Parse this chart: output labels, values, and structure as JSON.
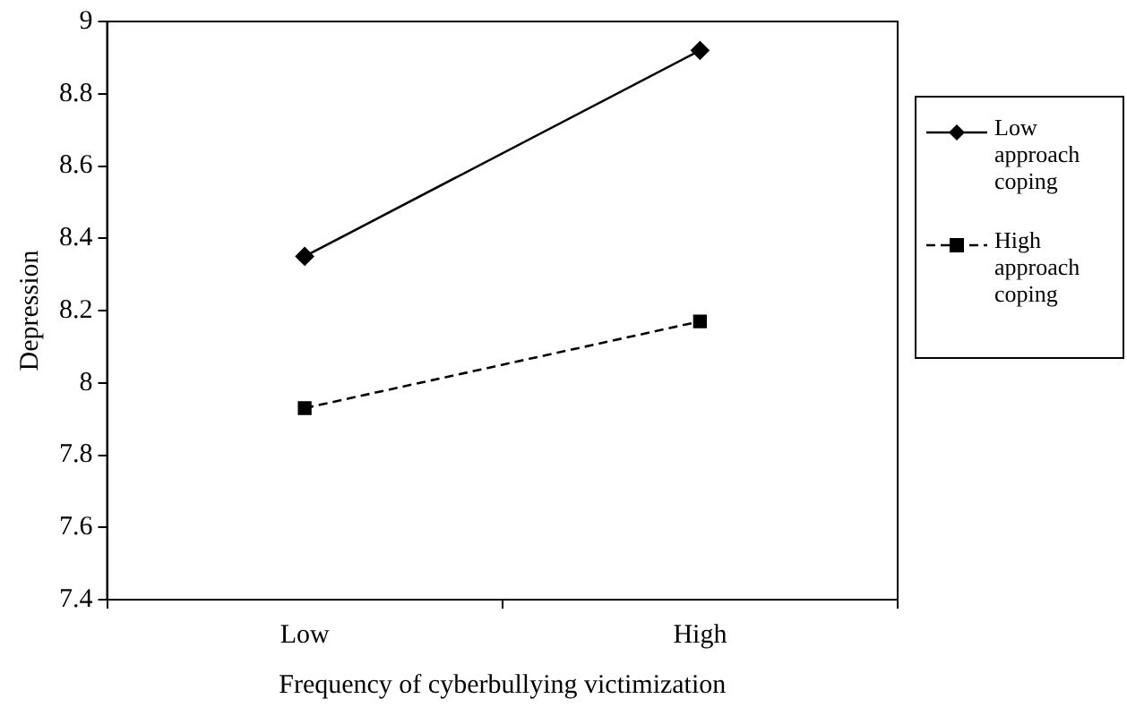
{
  "chart_data": {
    "type": "line",
    "xlabel": "Frequency of cyberbullying victimization",
    "ylabel": "Depression",
    "categories": [
      "Low",
      "High"
    ],
    "series": [
      {
        "name": "Low approach coping",
        "color": "#000000",
        "values": [
          8.35,
          8.92
        ],
        "marker": "diamond",
        "line_style": "solid"
      },
      {
        "name": "High approach coping",
        "color": "#000000",
        "values": [
          7.93,
          8.17
        ],
        "marker": "square",
        "line_style": "dashed"
      }
    ],
    "ylim": [
      7.4,
      9
    ],
    "yticks": [
      7.4,
      7.6,
      7.8,
      8,
      8.2,
      8.4,
      8.6,
      8.8,
      9
    ],
    "grid": false,
    "legend": "right"
  }
}
